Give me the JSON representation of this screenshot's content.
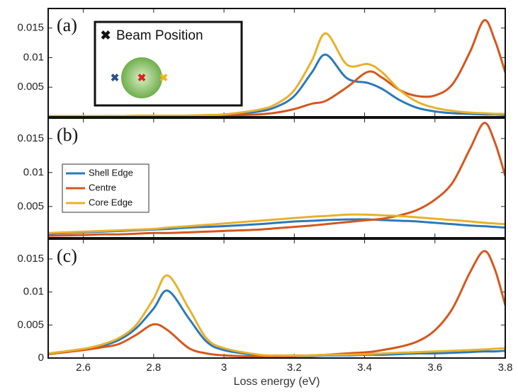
{
  "chart_data": [
    {
      "type": "line",
      "panel_label": "(a)",
      "inset_title": "Beam Position",
      "x": [
        2.5,
        2.6,
        2.65,
        2.7,
        2.75,
        2.8,
        2.84,
        2.9,
        2.95,
        3.0,
        3.1,
        3.15,
        3.2,
        3.25,
        3.29,
        3.35,
        3.41,
        3.45,
        3.5,
        3.55,
        3.6,
        3.65,
        3.7,
        3.74,
        3.77,
        3.8
      ],
      "xlim": [
        2.5,
        3.8
      ],
      "xticks": [
        2.6,
        2.8,
        3,
        3.2,
        3.4,
        3.6,
        3.8
      ],
      "ylim": [
        0,
        0.0183
      ],
      "yticks": [
        0.005,
        0.01,
        0.015
      ],
      "series": [
        {
          "color": "#2a7ab9",
          "values": [
            0.0001,
            0.0001,
            0.0001,
            0.0001,
            0.0001,
            0.0001,
            0.0001,
            0.0002,
            0.0002,
            0.0003,
            0.0009,
            0.0017,
            0.0035,
            0.0075,
            0.0105,
            0.0065,
            0.0057,
            0.0047,
            0.0028,
            0.0015,
            0.0009,
            0.0006,
            0.0005,
            0.0004,
            0.0004,
            0.0003
          ]
        },
        {
          "color": "#d5571e",
          "values": [
            0.0001,
            0.0001,
            0.0001,
            0.0001,
            0.0001,
            0.0001,
            0.0001,
            0.0001,
            0.0001,
            0.0002,
            0.0004,
            0.0007,
            0.0013,
            0.0022,
            0.0027,
            0.005,
            0.0076,
            0.0066,
            0.0045,
            0.0035,
            0.0036,
            0.0055,
            0.011,
            0.0163,
            0.013,
            0.0075
          ]
        },
        {
          "color": "#e8b12c",
          "values": [
            0.0001,
            0.0001,
            0.0001,
            0.0001,
            0.0002,
            0.0002,
            0.0002,
            0.0002,
            0.0003,
            0.0004,
            0.0012,
            0.0022,
            0.0045,
            0.0095,
            0.0141,
            0.0088,
            0.0089,
            0.0075,
            0.0045,
            0.0025,
            0.0015,
            0.001,
            0.0007,
            0.0006,
            0.0005,
            0.0005
          ]
        }
      ]
    },
    {
      "type": "line",
      "panel_label": "(b)",
      "x": [
        2.5,
        2.6,
        2.65,
        2.7,
        2.75,
        2.8,
        2.84,
        2.9,
        2.95,
        3.0,
        3.1,
        3.15,
        3.2,
        3.25,
        3.29,
        3.35,
        3.41,
        3.45,
        3.5,
        3.55,
        3.6,
        3.65,
        3.7,
        3.74,
        3.77,
        3.8
      ],
      "xlim": [
        2.5,
        3.8
      ],
      "xticks": [
        2.6,
        2.8,
        3,
        3.2,
        3.4,
        3.6,
        3.8
      ],
      "ylim": [
        0.0004,
        0.018
      ],
      "yticks": [
        0.005,
        0.01,
        0.015
      ],
      "series": [
        {
          "name": "Shell Edge",
          "color": "#2a7ab9",
          "values": [
            0.001,
            0.0012,
            0.0013,
            0.0014,
            0.0015,
            0.0016,
            0.0017,
            0.0019,
            0.002,
            0.0021,
            0.0024,
            0.0026,
            0.0028,
            0.0029,
            0.003,
            0.0031,
            0.0031,
            0.003,
            0.0029,
            0.0028,
            0.0026,
            0.0024,
            0.0022,
            0.0021,
            0.002,
            0.0019
          ]
        },
        {
          "name": "Centre",
          "color": "#d5571e",
          "values": [
            0.0007,
            0.0008,
            0.0009,
            0.0009,
            0.001,
            0.0011,
            0.0011,
            0.0012,
            0.0013,
            0.0014,
            0.0016,
            0.0018,
            0.002,
            0.0022,
            0.0024,
            0.0027,
            0.003,
            0.0032,
            0.0037,
            0.0045,
            0.006,
            0.0085,
            0.0135,
            0.0173,
            0.0145,
            0.0095
          ]
        },
        {
          "name": "Core Edge",
          "color": "#e8b12c",
          "values": [
            0.0011,
            0.0013,
            0.0014,
            0.0015,
            0.0016,
            0.0017,
            0.0019,
            0.0021,
            0.0023,
            0.0025,
            0.0029,
            0.0031,
            0.0033,
            0.0035,
            0.0036,
            0.0038,
            0.0038,
            0.0037,
            0.0036,
            0.0034,
            0.0032,
            0.003,
            0.0028,
            0.0026,
            0.0025,
            0.0024
          ]
        }
      ]
    },
    {
      "type": "line",
      "panel_label": "(c)",
      "xlabel": "Loss energy (eV)",
      "x": [
        2.5,
        2.6,
        2.65,
        2.7,
        2.75,
        2.8,
        2.84,
        2.9,
        2.95,
        3.0,
        3.1,
        3.15,
        3.2,
        3.25,
        3.29,
        3.35,
        3.41,
        3.45,
        3.5,
        3.55,
        3.6,
        3.65,
        3.7,
        3.74,
        3.77,
        3.8
      ],
      "xlim": [
        2.5,
        3.8
      ],
      "xticks": [
        2.6,
        2.8,
        3,
        3.2,
        3.4,
        3.6,
        3.8
      ],
      "ylim": [
        0,
        0.018
      ],
      "yticks": [
        0,
        0.005,
        0.01,
        0.015
      ],
      "series": [
        {
          "color": "#2a7ab9",
          "values": [
            0.0006,
            0.0013,
            0.0018,
            0.0027,
            0.0045,
            0.0075,
            0.0102,
            0.006,
            0.0025,
            0.0012,
            0.0004,
            0.0003,
            0.0003,
            0.0003,
            0.0004,
            0.0004,
            0.0005,
            0.0005,
            0.0006,
            0.0007,
            0.0007,
            0.0008,
            0.0009,
            0.001,
            0.001,
            0.0011
          ]
        },
        {
          "color": "#d5571e",
          "values": [
            0.0006,
            0.0012,
            0.0016,
            0.0021,
            0.0035,
            0.0051,
            0.0042,
            0.0015,
            0.0007,
            0.0004,
            0.0002,
            0.0002,
            0.0003,
            0.0004,
            0.0005,
            0.0007,
            0.0009,
            0.0012,
            0.0017,
            0.0025,
            0.0042,
            0.0075,
            0.013,
            0.0162,
            0.0135,
            0.008
          ]
        },
        {
          "color": "#e8b12c",
          "values": [
            0.0007,
            0.0014,
            0.002,
            0.003,
            0.005,
            0.009,
            0.0125,
            0.0075,
            0.003,
            0.0015,
            0.0005,
            0.0004,
            0.0004,
            0.0004,
            0.0005,
            0.0005,
            0.0006,
            0.0007,
            0.0008,
            0.0009,
            0.001,
            0.0011,
            0.0012,
            0.0013,
            0.0014,
            0.0015
          ]
        }
      ]
    }
  ]
}
